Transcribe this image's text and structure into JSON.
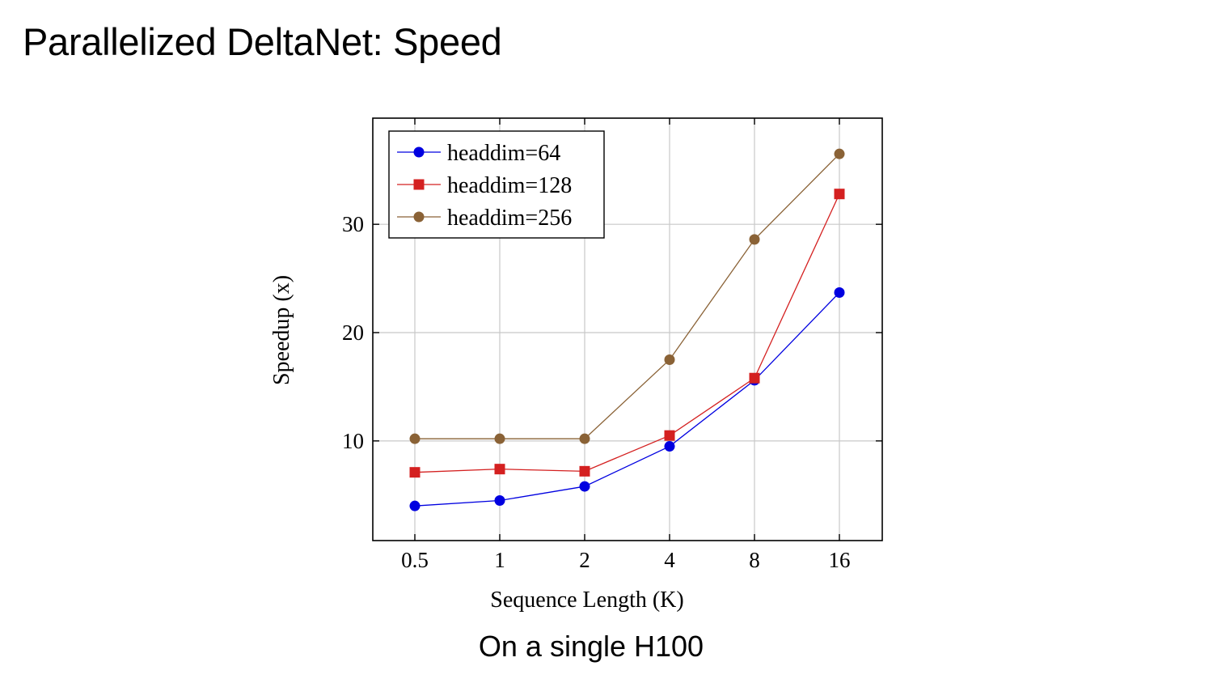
{
  "slide": {
    "title": "Parallelized DeltaNet: Speed",
    "caption": "On a single H100"
  },
  "colors": {
    "headdim64": "#0000e0",
    "headdim128": "#d42020",
    "headdim256": "#8a6236",
    "grid": "#c8c8c8",
    "axis": "#000000"
  },
  "chart_data": {
    "type": "line",
    "title": "",
    "xlabel": "Sequence Length (K)",
    "ylabel": "Speedup (x)",
    "categories": [
      "0.5",
      "1",
      "2",
      "4",
      "8",
      "16"
    ],
    "ylim": [
      0.8,
      39.8
    ],
    "yticks": [
      10,
      20,
      30
    ],
    "grid": true,
    "legend_position": "top-left",
    "series": [
      {
        "name": "headdim=64",
        "marker": "circle",
        "color": "#0000e0",
        "values": [
          4.0,
          4.5,
          5.8,
          9.5,
          15.6,
          23.7
        ]
      },
      {
        "name": "headdim=128",
        "marker": "square",
        "color": "#d42020",
        "values": [
          7.1,
          7.4,
          7.2,
          10.5,
          15.8,
          32.8
        ]
      },
      {
        "name": "headdim=256",
        "marker": "circle",
        "color": "#8a6236",
        "values": [
          10.2,
          10.2,
          10.2,
          17.5,
          28.6,
          36.5
        ]
      }
    ]
  }
}
